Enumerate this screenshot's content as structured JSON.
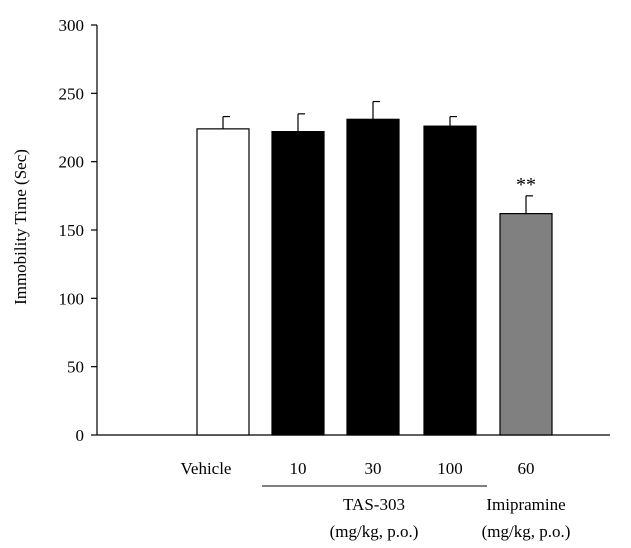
{
  "chart_data": {
    "type": "bar",
    "title": "",
    "ylabel": "Immobility Time (Sec)",
    "xlabel": "",
    "ylim": [
      0,
      300
    ],
    "yticks": [
      0,
      50,
      100,
      150,
      200,
      250,
      300
    ],
    "grid": false,
    "legend": "none",
    "bars": [
      {
        "label": "Vehicle",
        "value": 224,
        "error": 9,
        "fill": "#ffffff",
        "significance": ""
      },
      {
        "label": "10",
        "value": 222,
        "error": 13,
        "fill": "#000000",
        "significance": ""
      },
      {
        "label": "30",
        "value": 231,
        "error": 13,
        "fill": "#000000",
        "significance": ""
      },
      {
        "label": "100",
        "value": 226,
        "error": 7,
        "fill": "#000000",
        "significance": ""
      },
      {
        "label": "60",
        "value": 162,
        "error": 13,
        "fill": "#808080",
        "significance": "**"
      }
    ],
    "groups": [
      {
        "name": "TAS-303",
        "unit": "(mg/kg, p.o.)",
        "bars": [
          1,
          2,
          3
        ]
      },
      {
        "name": "Imipramine",
        "unit": "(mg/kg, p.o.)",
        "bars": [
          4
        ]
      }
    ]
  }
}
